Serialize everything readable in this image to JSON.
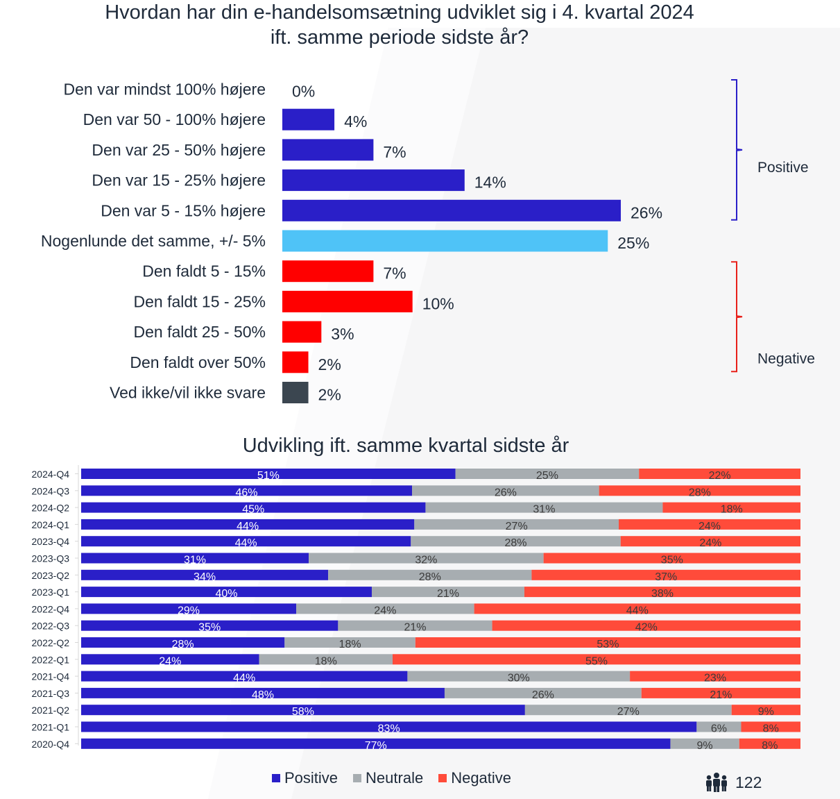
{
  "colors": {
    "positive": "#2a1fc8",
    "neutral_top": "#4fc3f7",
    "negative": "#ff0000",
    "unknown": "#3b4650",
    "neutral_bottom": "#a7adb1",
    "negative_bottom": "#ff4b3a",
    "text": "#1e2a3a"
  },
  "title": {
    "line1": "Hvordan har din e-handelsomsætning udviklet sig i 4. kvartal 2024",
    "line2": "ift. samme periode sidste år?"
  },
  "chart_data": [
    {
      "type": "bar",
      "orientation": "horizontal",
      "title": "Hvordan har din e-handelsomsætning udviklet sig i 4. kvartal 2024 ift. samme periode sidste år?",
      "categories": [
        "Den var mindst 100% højere",
        "Den var 50 - 100% højere",
        "Den var 25 - 50% højere",
        "Den var 15 - 25% højere",
        "Den var 5 - 15% højere",
        "Nogenlunde det samme, +/- 5%",
        "Den faldt 5 - 15%",
        "Den faldt 15 - 25%",
        "Den faldt 25 - 50%",
        "Den faldt over 50%",
        "Ved ikke/vil ikke svare"
      ],
      "values": [
        0,
        4,
        7,
        14,
        26,
        25,
        7,
        10,
        3,
        2,
        2
      ],
      "value_labels": [
        "0%",
        "4%",
        "7%",
        "14%",
        "26%",
        "25%",
        "7%",
        "10%",
        "3%",
        "2%",
        "2%"
      ],
      "groups": [
        "positive",
        "positive",
        "positive",
        "positive",
        "positive",
        "neutral",
        "negative",
        "negative",
        "negative",
        "negative",
        "unknown"
      ],
      "annotations": [
        {
          "label": "Positive",
          "from": 0,
          "to": 4,
          "color": "#2a1fc8"
        },
        {
          "label": "Negative",
          "from": 6,
          "to": 9,
          "color": "#e8201a"
        }
      ],
      "xlim": [
        0,
        26
      ]
    },
    {
      "type": "bar",
      "orientation": "horizontal",
      "stacked": true,
      "title": "Udvikling ift. samme kvartal sidste år",
      "categories": [
        "2024-Q4",
        "2024-Q3",
        "2024-Q2",
        "2024-Q1",
        "2023-Q4",
        "2023-Q3",
        "2023-Q2",
        "2023-Q1",
        "2022-Q4",
        "2022-Q3",
        "2022-Q2",
        "2022-Q1",
        "2021-Q4",
        "2021-Q3",
        "2021-Q2",
        "2021-Q1",
        "2020-Q4"
      ],
      "series": [
        {
          "name": "Positive",
          "values": [
            51,
            46,
            45,
            44,
            44,
            31,
            34,
            40,
            29,
            35,
            28,
            24,
            44,
            48,
            58,
            83,
            77
          ]
        },
        {
          "name": "Neutrale",
          "values": [
            25,
            26,
            31,
            27,
            28,
            32,
            28,
            21,
            24,
            21,
            18,
            18,
            30,
            26,
            27,
            6,
            9
          ]
        },
        {
          "name": "Negative",
          "values": [
            22,
            28,
            18,
            24,
            24,
            35,
            37,
            38,
            44,
            42,
            53,
            55,
            23,
            21,
            9,
            8,
            8
          ]
        }
      ],
      "legend": "bottom"
    }
  ],
  "bottom_title": "Udvikling ift. samme kvartal sidste år",
  "legend": {
    "positive": "Positive",
    "neutral": "Neutrale",
    "negative": "Negative"
  },
  "respondents": {
    "icon": "people-icon",
    "count": "122"
  }
}
